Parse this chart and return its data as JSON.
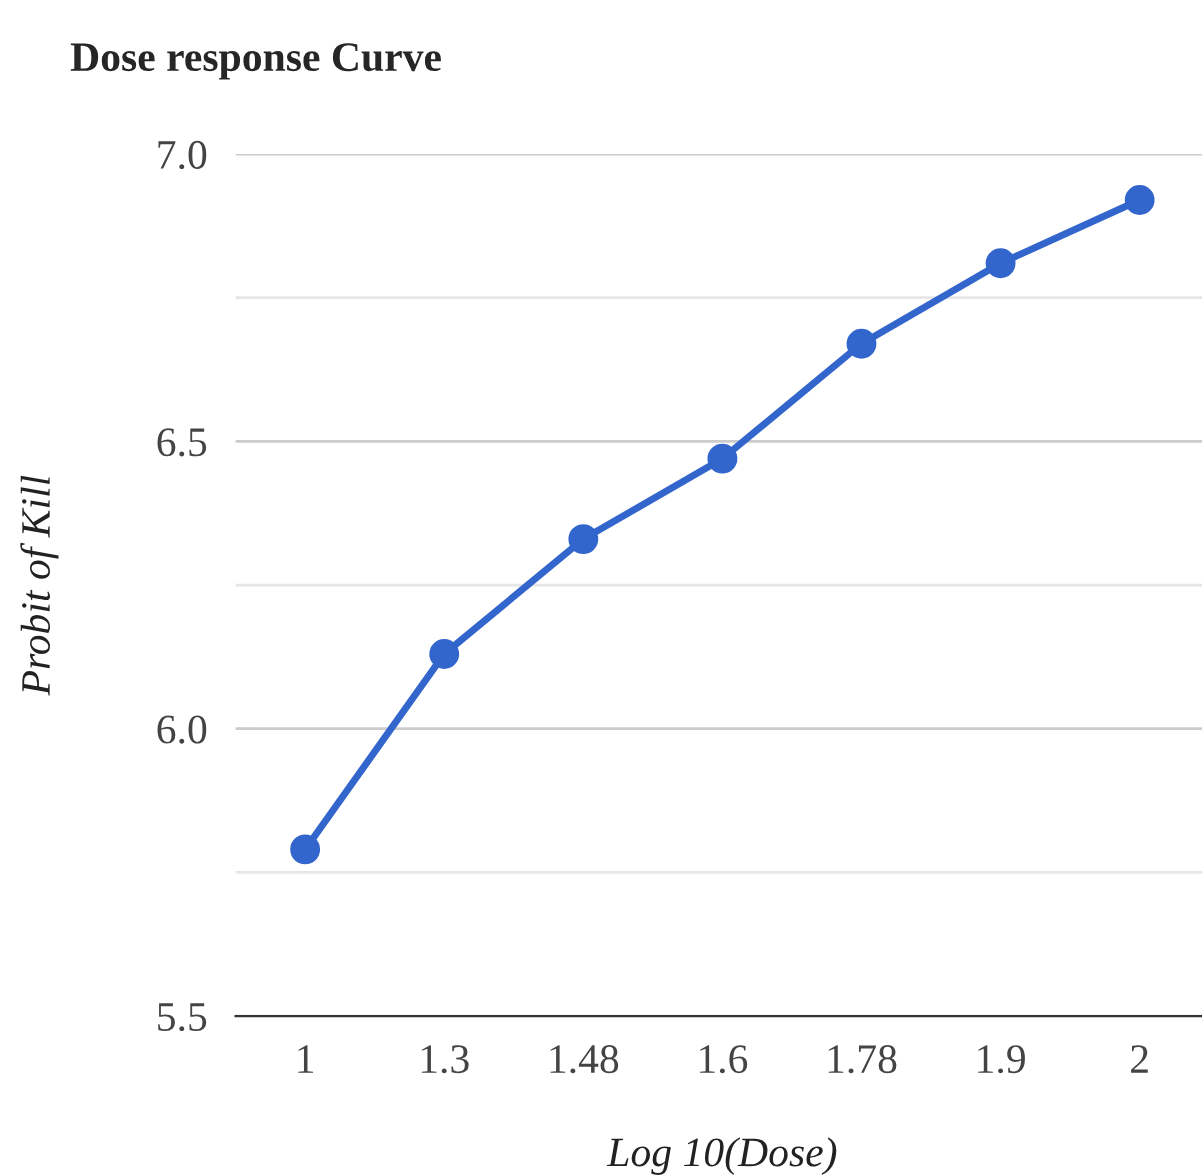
{
  "chart_data": {
    "type": "line",
    "title": "Dose response Curve",
    "xlabel": "Log 10(Dose)",
    "ylabel": "Probit of Kill",
    "categories": [
      "1",
      "1.3",
      "1.48",
      "1.6",
      "1.78",
      "1.9",
      "2"
    ],
    "series": [
      {
        "color": "#3366cc",
        "values": [
          5.79,
          6.13,
          6.33,
          6.47,
          6.67,
          6.81,
          6.92
        ]
      }
    ],
    "ylim": [
      5.5,
      7.0
    ],
    "yticks": [
      5.5,
      {
        "value": 5.75,
        "label": null
      },
      {
        "value": 6,
        "label": "6.0"
      },
      {
        "value": 6.25,
        "label": null
      },
      6.5,
      {
        "value": 6.75,
        "label": null
      },
      {
        "value": 7,
        "label": "7.0"
      }
    ],
    "grid": "y",
    "marker": "circle",
    "line_style": "solid"
  }
}
